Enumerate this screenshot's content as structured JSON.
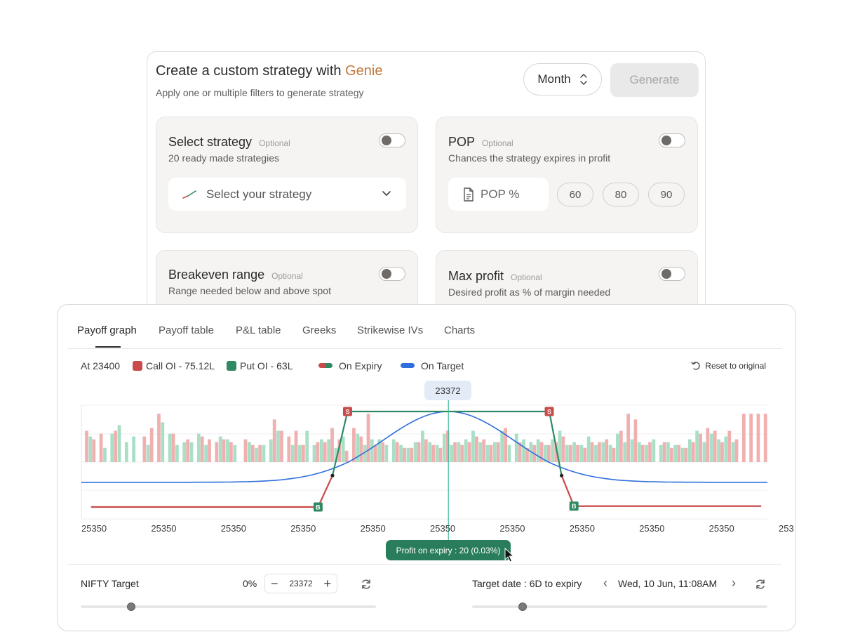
{
  "genie": {
    "title_prefix": "Create a custom strategy with ",
    "title_accent": "Genie",
    "subtitle": "Apply one or multiple filters to generate strategy",
    "period_select": "Month",
    "generate_label": "Generate",
    "filters": [
      {
        "title": "Select strategy",
        "optional": "Optional",
        "desc": "20 ready made strategies",
        "enabled": false,
        "placeholder": "Select your strategy"
      },
      {
        "title": "POP",
        "optional": "Optional",
        "desc": "Chances the strategy expires in profit",
        "enabled": false,
        "placeholder": "POP %",
        "chips": [
          "60",
          "80",
          "90"
        ]
      },
      {
        "title": "Breakeven range",
        "optional": "Optional",
        "desc": "Range needed below and above spot",
        "enabled": false
      },
      {
        "title": "Max profit",
        "optional": "Optional",
        "desc": "Desired profit as % of margin needed",
        "enabled": false
      }
    ]
  },
  "panel": {
    "tabs": [
      "Payoff graph",
      "Payoff table",
      "P&L table",
      "Greeks",
      "Strikewise IVs",
      "Charts"
    ],
    "active_tab": 0,
    "legend": {
      "at": "At 23400",
      "call_oi": "Call OI - 75.12L",
      "put_oi": "Put OI - 63L",
      "on_expiry": "On Expiry",
      "on_target": "On Target"
    },
    "reset_label": "Reset to original",
    "price_tag": "23372",
    "profit_label": "Profit on expiry : 20 (0.03%)",
    "nifty_target_label": "NIFTY Target",
    "nifty_pct": "0%",
    "nifty_value": "23372",
    "target_date_label": "Target date : 6D to expiry",
    "target_date_value": "Wed, 10 Jun, 11:08AM",
    "nifty_slider_fraction": 0.17,
    "date_slider_fraction": 0.17
  },
  "colors": {
    "accent": "#c0783a",
    "call": "#c94a4a",
    "put": "#2f8a63",
    "call_bar": "#f0b0b0",
    "put_bar": "#a8dfc6",
    "target": "#2f6fdc",
    "profit_pill": "#2a7d5c"
  },
  "chart_data": {
    "type": "bar",
    "x_tick_labels": [
      "25350",
      "25350",
      "25350",
      "25350",
      "25350",
      "25350",
      "25350",
      "25350",
      "25350",
      "25350",
      "253"
    ],
    "oi_bars": [
      {
        "put": 0,
        "call": 0.55
      },
      {
        "put": 0.45,
        "call": 0.4
      },
      {
        "put": 0,
        "call": 0.5
      },
      {
        "put": 0.25,
        "call": 0
      },
      {
        "put": 0.5,
        "call": 0.55
      },
      {
        "put": 0.65,
        "call": 0
      },
      {
        "put": 0.35,
        "call": 0
      },
      {
        "put": 0.45,
        "call": 0
      },
      {
        "put": 0,
        "call": 0.45
      },
      {
        "put": 0.3,
        "call": 0.6
      },
      {
        "put": 0,
        "call": 0.85
      },
      {
        "put": 0.7,
        "call": 0
      },
      {
        "put": 0.5,
        "call": 0.5
      },
      {
        "put": 0.3,
        "call": 0
      },
      {
        "put": 0.35,
        "call": 0.4
      },
      {
        "put": 0.35,
        "call": 0
      },
      {
        "put": 0.5,
        "call": 0.45
      },
      {
        "put": 0.3,
        "call": 0.4
      },
      {
        "put": 0,
        "call": 0.35
      },
      {
        "put": 0.45,
        "call": 0.4
      },
      {
        "put": 0.4,
        "call": 0.35
      },
      {
        "put": 0.3,
        "call": 0
      },
      {
        "put": 0,
        "call": 0.4
      },
      {
        "put": 0.35,
        "call": 0.3
      },
      {
        "put": 0.25,
        "call": 0.3
      },
      {
        "put": 0.3,
        "call": 0
      },
      {
        "put": 0.4,
        "call": 0.75
      },
      {
        "put": 0.55,
        "call": 0.55
      },
      {
        "put": 0,
        "call": 0.45
      },
      {
        "put": 0.3,
        "call": 0.55
      },
      {
        "put": 0.3,
        "call": 0.3
      },
      {
        "put": 0.55,
        "call": 0
      },
      {
        "put": 0.3,
        "call": 0.35
      },
      {
        "put": 0.4,
        "call": 0.35
      },
      {
        "put": 0.4,
        "call": 0.6
      },
      {
        "put": 0.25,
        "call": 0.4
      },
      {
        "put": 0.45,
        "call": 0.2
      },
      {
        "put": 0,
        "call": 0.6
      },
      {
        "put": 0.5,
        "call": 0.45
      },
      {
        "put": 0.3,
        "call": 0.85
      },
      {
        "put": 0.4,
        "call": 0.3
      },
      {
        "put": 0.4,
        "call": 0.35
      },
      {
        "put": 0.3,
        "call": 0
      },
      {
        "put": 0.4,
        "call": 0.35
      },
      {
        "put": 0.3,
        "call": 0.25
      },
      {
        "put": 0.25,
        "call": 0.25
      },
      {
        "put": 0.35,
        "call": 0.35
      },
      {
        "put": 0.55,
        "call": 0.4
      },
      {
        "put": 0.35,
        "call": 0.3
      },
      {
        "put": 0.3,
        "call": 0.25
      },
      {
        "put": 0.5,
        "call": 0.55
      },
      {
        "put": 0.3,
        "call": 0.35
      },
      {
        "put": 0.35,
        "call": 0.3
      },
      {
        "put": 0.4,
        "call": 0.35
      },
      {
        "put": 0.55,
        "call": 0.45
      },
      {
        "put": 0.35,
        "call": 0.4
      },
      {
        "put": 0.3,
        "call": 0.3
      },
      {
        "put": 0.35,
        "call": 0.35
      },
      {
        "put": 0.55,
        "call": 0.6
      },
      {
        "put": 0.3,
        "call": 0
      },
      {
        "put": 0.5,
        "call": 0.35
      },
      {
        "put": 0.4,
        "call": 0.25
      },
      {
        "put": 0.35,
        "call": 0.3
      },
      {
        "put": 0.4,
        "call": 0.35
      },
      {
        "put": 0.3,
        "call": 0.3
      },
      {
        "put": 0.4,
        "call": 0.35
      },
      {
        "put": 0.55,
        "call": 0.45
      },
      {
        "put": 0.3,
        "call": 0.3
      },
      {
        "put": 0.35,
        "call": 0.3
      },
      {
        "put": 0.3,
        "call": 0.25
      },
      {
        "put": 0.45,
        "call": 0.35
      },
      {
        "put": 0.3,
        "call": 0.35
      },
      {
        "put": 0.35,
        "call": 0.4
      },
      {
        "put": 0.3,
        "call": 0.25
      },
      {
        "put": 0.5,
        "call": 0.55
      },
      {
        "put": 0.35,
        "call": 0.85
      },
      {
        "put": 0.4,
        "call": 0.75
      },
      {
        "put": 0.35,
        "call": 0.3
      },
      {
        "put": 0.3,
        "call": 0.35
      },
      {
        "put": 0.4,
        "call": 0
      },
      {
        "put": 0.3,
        "call": 0.35
      },
      {
        "put": 0.35,
        "call": 0.25
      },
      {
        "put": 0.3,
        "call": 0.3
      },
      {
        "put": 0.25,
        "call": 0.25
      },
      {
        "put": 0.4,
        "call": 0.35
      },
      {
        "put": 0.55,
        "call": 0.5
      },
      {
        "put": 0.35,
        "call": 0.6
      },
      {
        "put": 0.5,
        "call": 0.55
      },
      {
        "put": 0.4,
        "call": 0.35
      },
      {
        "put": 0.45,
        "call": 0.55
      },
      {
        "put": 0.35,
        "call": 0.4
      },
      {
        "put": 0,
        "call": 0.85
      },
      {
        "put": 0,
        "call": 0.85
      },
      {
        "put": 0,
        "call": 0.85
      },
      {
        "put": 0,
        "call": 0.85
      }
    ],
    "expiry_payoff": [
      {
        "x": 0.015,
        "y": -1.0,
        "marker": ""
      },
      {
        "x": 0.345,
        "y": -1.0,
        "marker": "B"
      },
      {
        "x": 0.366,
        "y": -0.3,
        "marker": "dot"
      },
      {
        "x": 0.388,
        "y": 1.0,
        "marker": "S"
      },
      {
        "x": 0.682,
        "y": 1.0,
        "marker": "S"
      },
      {
        "x": 0.7,
        "y": -0.3,
        "marker": "dot"
      },
      {
        "x": 0.718,
        "y": -0.98,
        "marker": "B"
      },
      {
        "x": 0.99,
        "y": -0.98,
        "marker": ""
      }
    ],
    "target_curve": {
      "baseline": -0.45,
      "peak": 1.0,
      "center": 0.535,
      "width": 0.135
    },
    "spot_x": 0.535
  }
}
